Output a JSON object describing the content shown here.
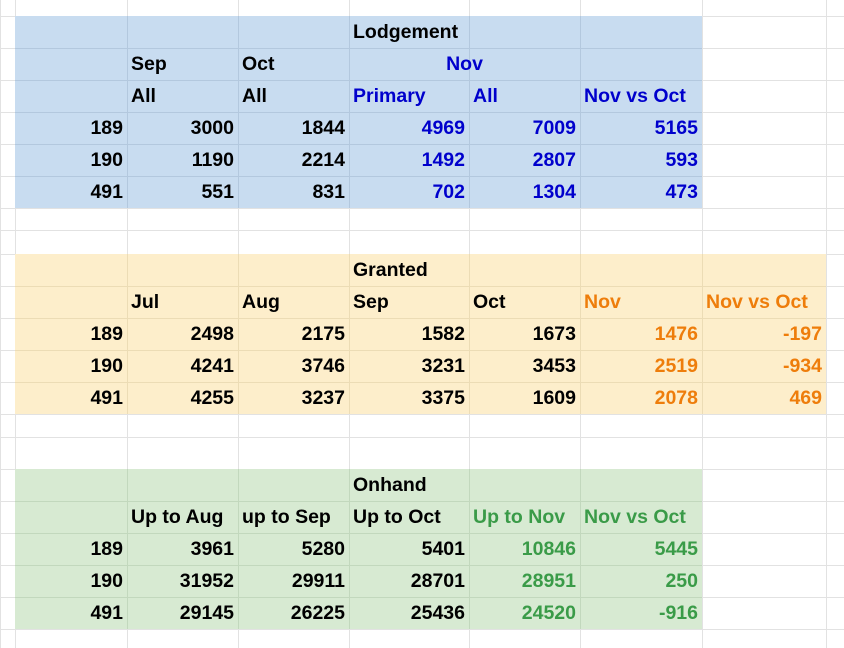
{
  "tables": [
    {
      "rows": [
        [
          null,
          null,
          null,
          "Lodgement",
          null,
          null
        ],
        [
          null,
          "Sep",
          "Oct",
          "Nov",
          null,
          null
        ],
        [
          null,
          "All",
          "All",
          "Primary",
          "All",
          "Nov vs Oct"
        ],
        [
          189,
          3000,
          1844,
          4969,
          7009,
          5165
        ],
        [
          190,
          1190,
          2214,
          1492,
          2807,
          593
        ],
        [
          491,
          551,
          831,
          702,
          1304,
          473
        ]
      ]
    },
    {
      "rows": [
        [
          null,
          null,
          null,
          "Granted",
          null,
          null,
          null
        ],
        [
          null,
          "Jul",
          "Aug",
          "Sep",
          "Oct",
          "Nov",
          "Nov vs Oct"
        ],
        [
          189,
          2498,
          2175,
          1582,
          1673,
          1476,
          -197
        ],
        [
          190,
          4241,
          3746,
          3231,
          3453,
          2519,
          -934
        ],
        [
          491,
          4255,
          3237,
          3375,
          1609,
          2078,
          469
        ]
      ]
    },
    {
      "rows": [
        [
          null,
          null,
          null,
          "Onhand",
          null,
          null
        ],
        [
          null,
          "Up to Aug",
          "up to Sep",
          "Up to Oct",
          "Up to Nov",
          "Nov vs Oct"
        ],
        [
          189,
          3961,
          5280,
          5401,
          10846,
          5445
        ],
        [
          190,
          31952,
          29911,
          28701,
          28951,
          250
        ],
        [
          491,
          29145,
          26225,
          25436,
          24520,
          -916
        ]
      ]
    }
  ]
}
